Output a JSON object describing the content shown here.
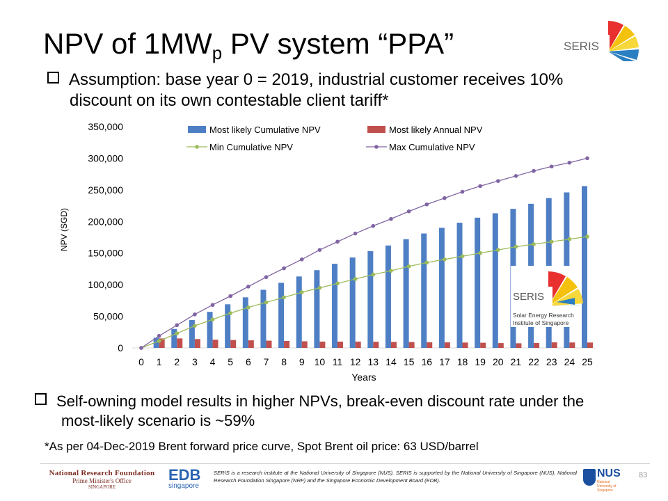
{
  "slide": {
    "title_main": "NPV of 1MW",
    "title_sub": "p",
    "title_end": " PV system “PPA”",
    "seris_logo_text": "SERIS",
    "bullet1_line1": "Assumption: base year 0 = 2019, industrial customer receives 10%",
    "bullet1_line2": "discount on its own contestable client tariff*",
    "bullet2_line1": "Self-owning model results in higher NPVs, break-even discount rate under the",
    "bullet2_line2": "most-likely scenario is ~59%",
    "footnote": "*As per 04-Dec-2019 Brent forward price curve, Spot Brent oil price: 63 USD/barrel",
    "page_number": "83"
  },
  "footer": {
    "nrf_line1": "National Research Foundation",
    "nrf_line2": "Prime Minister's Office",
    "nrf_line3": "SINGAPORE",
    "edb_main": "EDB",
    "edb_sub": "singapore",
    "text": "SERIS is a research institute at the National University of Singapore (NUS). SERIS is supported by the National University of Singapore (NUS), National Research Foundation Singapore (NRF) and the Singapore Economic Development Board (EDB).",
    "nus_main": "NUS",
    "nus_sub": "National University of Singapore"
  },
  "inset_logo": {
    "brand": "SERIS",
    "line1": "Solar Energy Research",
    "line2": "Institute of Singapore"
  },
  "colors": {
    "cumulative_bar": "#4e7fc4",
    "annual_bar": "#c0504d",
    "min_line": "#9bbb59",
    "max_line": "#8064a2"
  },
  "chart_data": {
    "type": "bar",
    "xlabel": "Years",
    "ylabel": "NPV (SGD)",
    "ylim": [
      0,
      350000
    ],
    "yticks": [
      "0",
      "50,000",
      "100,000",
      "150,000",
      "200,000",
      "250,000",
      "300,000",
      "350,000"
    ],
    "categories": [
      "0",
      "1",
      "2",
      "3",
      "4",
      "5",
      "6",
      "7",
      "8",
      "9",
      "10",
      "11",
      "12",
      "13",
      "14",
      "15",
      "16",
      "17",
      "18",
      "19",
      "20",
      "21",
      "22",
      "23",
      "24",
      "25"
    ],
    "grid": false,
    "legend_position": "top",
    "series": [
      {
        "name": "Most likely Cumulative NPV",
        "type": "bar",
        "values": [
          0,
          16000,
          30000,
          44000,
          57000,
          69000,
          80000,
          92000,
          103000,
          113000,
          123000,
          133000,
          143000,
          153000,
          162000,
          172000,
          181000,
          190000,
          198000,
          206000,
          213000,
          220000,
          228000,
          237000,
          246000,
          256000
        ]
      },
      {
        "name": "Most likely Annual NPV",
        "type": "bar",
        "values": [
          0,
          15000,
          15000,
          14000,
          13000,
          12500,
          12000,
          11500,
          11000,
          10500,
          10000,
          10000,
          10000,
          9800,
          9500,
          9300,
          9000,
          8800,
          8500,
          8200,
          7600,
          7300,
          7800,
          8800,
          8600,
          8500
        ]
      },
      {
        "name": "Min Cumulative NPV",
        "type": "line",
        "values": [
          0,
          11000,
          23000,
          35000,
          45000,
          55000,
          64000,
          72000,
          80000,
          88000,
          95000,
          102000,
          109000,
          116000,
          122000,
          129000,
          135000,
          140000,
          145000,
          150000,
          155000,
          160000,
          164000,
          168000,
          172000,
          176000
        ]
      },
      {
        "name": "Max Cumulative NPV",
        "type": "line",
        "values": [
          0,
          19000,
          36000,
          53000,
          68000,
          82000,
          97000,
          112000,
          126000,
          140000,
          155000,
          168000,
          181000,
          193000,
          204000,
          216000,
          227000,
          237000,
          247000,
          256000,
          264000,
          272000,
          280000,
          287000,
          293000,
          300000
        ]
      }
    ]
  }
}
